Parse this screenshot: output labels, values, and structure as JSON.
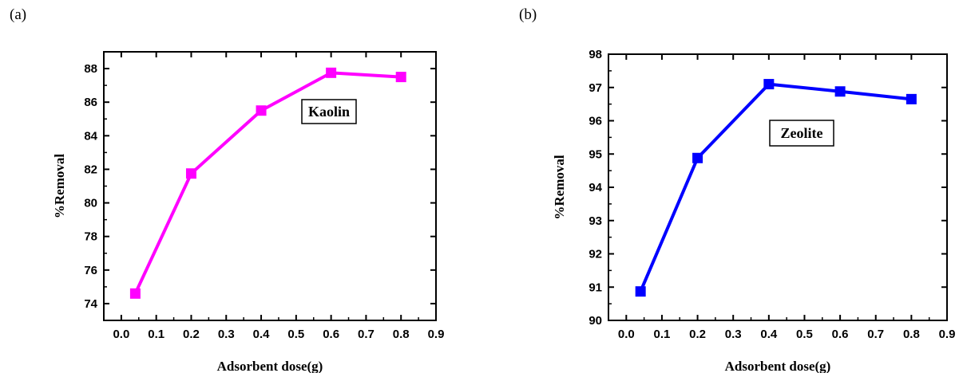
{
  "chart_data": [
    {
      "type": "line",
      "panel_label": "(a)",
      "x": [
        0.04,
        0.2,
        0.4,
        0.6,
        0.8
      ],
      "series": [
        {
          "values": [
            74.6,
            81.75,
            85.5,
            87.75,
            87.5
          ],
          "color": "#ff00ff",
          "marker": "square"
        }
      ],
      "xlabel": "Adsorbent dose(g)",
      "ylabel": "%Removal",
      "xlim": [
        -0.05,
        0.9
      ],
      "ylim": [
        73,
        89
      ],
      "xticks": [
        "0.0",
        "0.1",
        "0.2",
        "0.3",
        "0.4",
        "0.5",
        "0.6",
        "0.7",
        "0.8",
        "0.9"
      ],
      "yticks": [
        "74",
        "76",
        "78",
        "80",
        "82",
        "84",
        "86",
        "88"
      ],
      "annotation": "Kaolin",
      "grid": false
    },
    {
      "type": "line",
      "panel_label": "(b)",
      "x": [
        0.04,
        0.2,
        0.4,
        0.6,
        0.8
      ],
      "series": [
        {
          "values": [
            90.87,
            94.88,
            97.1,
            96.88,
            96.65
          ],
          "color": "#0000ff",
          "marker": "square"
        }
      ],
      "xlabel": "Adsorbent dose(g)",
      "ylabel": "%Removal",
      "xlim": [
        -0.05,
        0.9
      ],
      "ylim": [
        90,
        98
      ],
      "xticks": [
        "0.0",
        "0.1",
        "0.2",
        "0.3",
        "0.4",
        "0.5",
        "0.6",
        "0.7",
        "0.8",
        "0.9"
      ],
      "yticks": [
        "90",
        "91",
        "92",
        "93",
        "94",
        "95",
        "96",
        "97",
        "98"
      ],
      "annotation": "Zeolite",
      "grid": false
    }
  ]
}
